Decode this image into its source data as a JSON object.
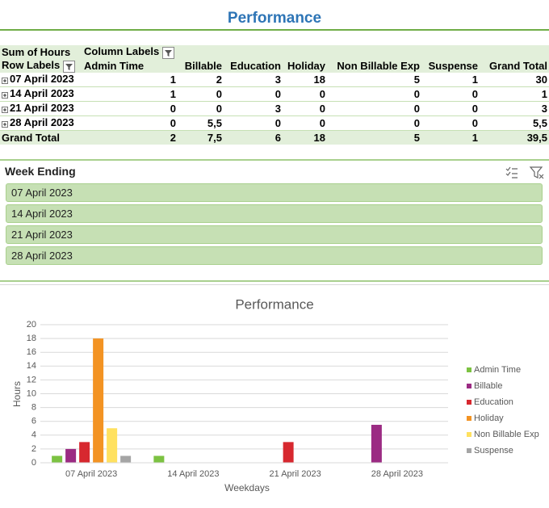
{
  "header": {
    "title": "Performance"
  },
  "pivot": {
    "corner": "Sum of Hours",
    "column_labels": "Column Labels",
    "row_labels": "Row Labels",
    "columns": [
      "Admin Time",
      "Billable",
      "Education",
      "Holiday",
      "Non Billable Exp",
      "Suspense",
      "Grand Total"
    ],
    "rows": [
      {
        "label": "07 April 2023",
        "cells": [
          "1",
          "2",
          "3",
          "18",
          "5",
          "1",
          "30"
        ]
      },
      {
        "label": "14 April 2023",
        "cells": [
          "1",
          "0",
          "0",
          "0",
          "0",
          "0",
          "1"
        ]
      },
      {
        "label": "21 April 2023",
        "cells": [
          "0",
          "0",
          "3",
          "0",
          "0",
          "0",
          "3"
        ]
      },
      {
        "label": "28 April 2023",
        "cells": [
          "0",
          "5,5",
          "0",
          "0",
          "0",
          "0",
          "5,5"
        ]
      }
    ],
    "grand_total": {
      "label": "Grand Total",
      "cells": [
        "2",
        "7,5",
        "6",
        "18",
        "5",
        "1",
        "39,5"
      ]
    }
  },
  "slicer": {
    "title": "Week Ending",
    "items": [
      "07 April 2023",
      "14 April 2023",
      "21 April 2023",
      "28 April 2023"
    ]
  },
  "chart_data": {
    "type": "bar",
    "title": "Performance",
    "x_label": "Weekdays",
    "y_label": "Hours",
    "categories": [
      "07 April 2023",
      "14 April 2023",
      "21 April 2023",
      "28 April 2023"
    ],
    "series": [
      {
        "name": "Admin Time",
        "color": "#7cc242",
        "values": [
          1,
          1,
          0,
          0
        ]
      },
      {
        "name": "Billable",
        "color": "#9b2b83",
        "values": [
          2,
          0,
          0,
          5.5
        ]
      },
      {
        "name": "Education",
        "color": "#d7282f",
        "values": [
          3,
          0,
          3,
          0
        ]
      },
      {
        "name": "Holiday",
        "color": "#f39323",
        "values": [
          18,
          0,
          0,
          0
        ]
      },
      {
        "name": "Non Billable Exp",
        "color": "#ffe15f",
        "values": [
          5,
          0,
          0,
          0
        ]
      },
      {
        "name": "Suspense",
        "color": "#a5a5a5",
        "values": [
          1,
          0,
          0,
          0
        ]
      }
    ],
    "ylim": [
      0,
      20
    ],
    "yticks": [
      0,
      2,
      4,
      6,
      8,
      10,
      12,
      14,
      16,
      18,
      20
    ],
    "grid": true,
    "legend": "right"
  }
}
